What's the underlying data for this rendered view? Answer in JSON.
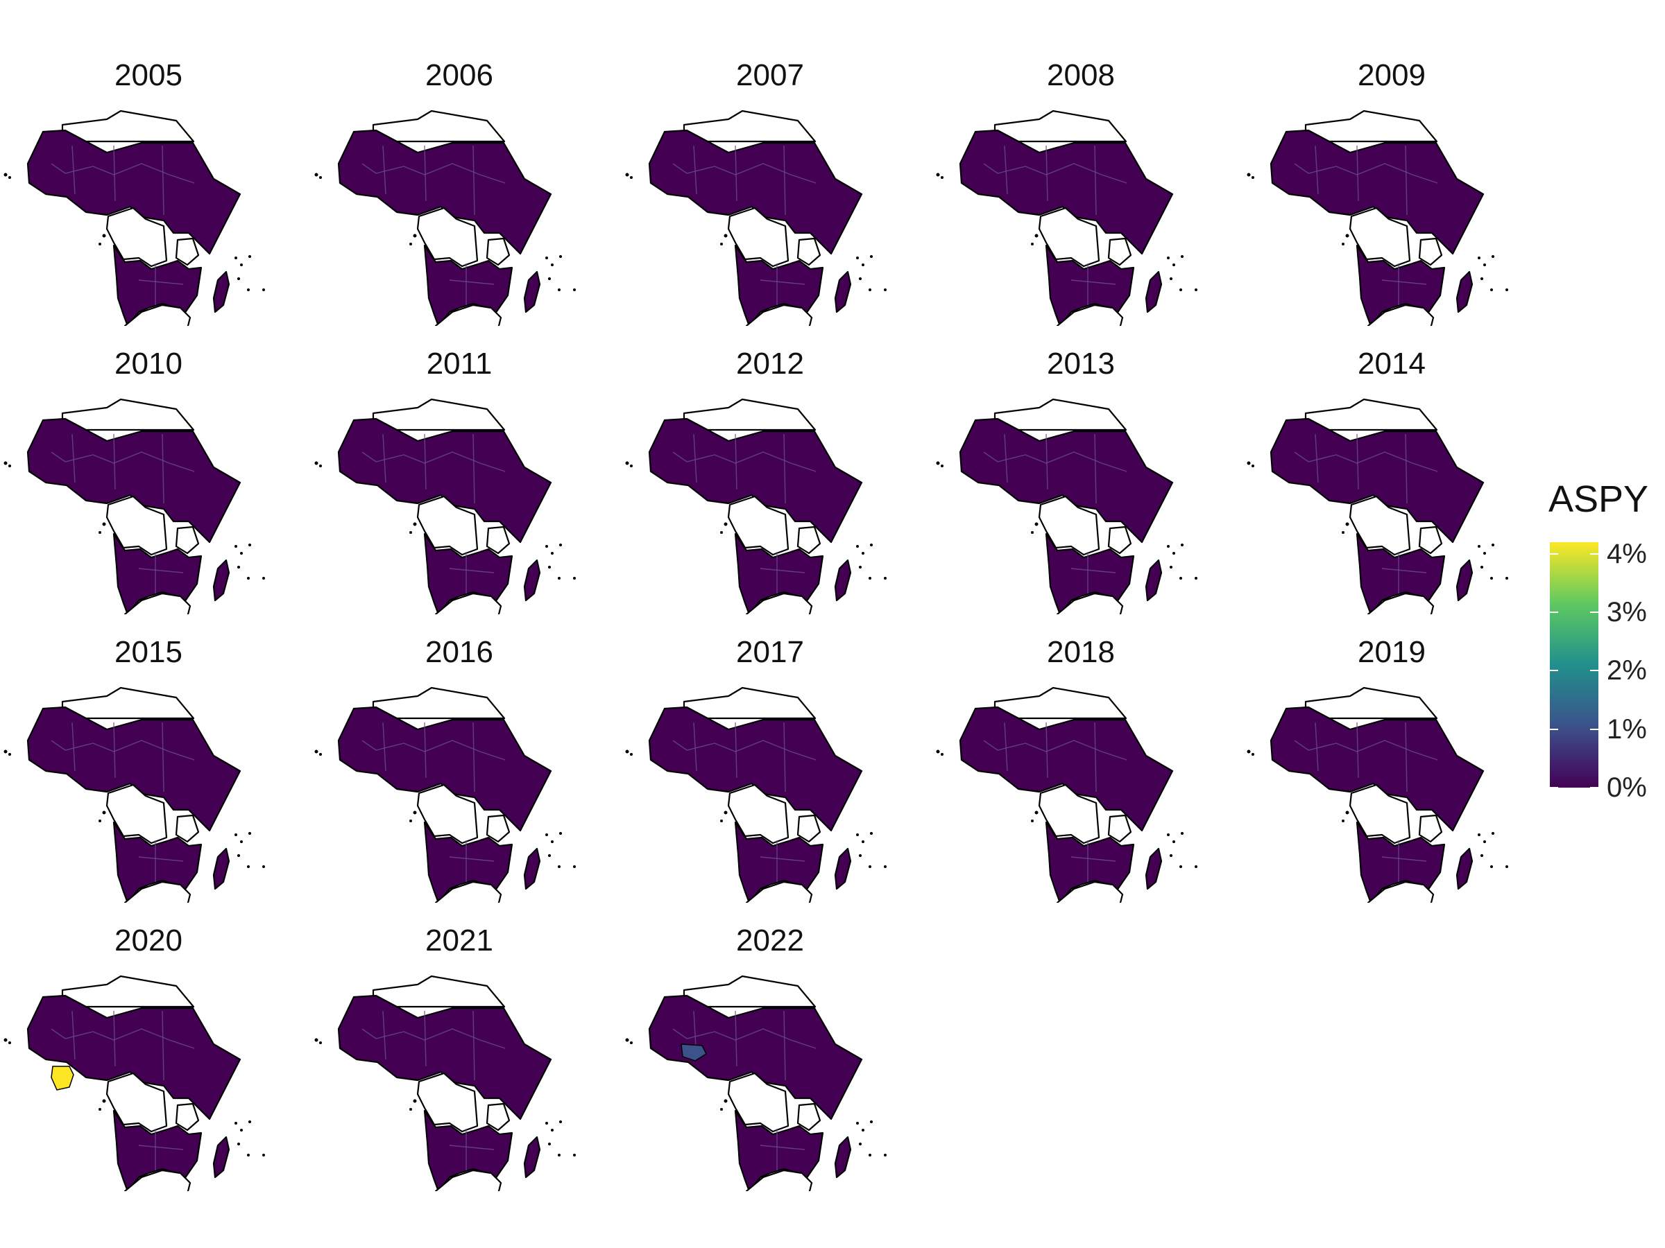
{
  "panels": [
    {
      "year": "2005"
    },
    {
      "year": "2006"
    },
    {
      "year": "2007"
    },
    {
      "year": "2008"
    },
    {
      "year": "2009"
    },
    {
      "year": "2010"
    },
    {
      "year": "2011"
    },
    {
      "year": "2012"
    },
    {
      "year": "2013"
    },
    {
      "year": "2014"
    },
    {
      "year": "2015"
    },
    {
      "year": "2016"
    },
    {
      "year": "2017"
    },
    {
      "year": "2018"
    },
    {
      "year": "2019"
    },
    {
      "year": "2020",
      "highlight": {
        "region": "west-africa-coast",
        "value_pct": 4.2,
        "color": "#fde725"
      }
    },
    {
      "year": "2021"
    },
    {
      "year": "2022",
      "highlight": {
        "region": "west-africa-interior",
        "value_pct": 1.1,
        "color": "#3b528b"
      }
    }
  ],
  "legend": {
    "title": "ASPY",
    "ticks": [
      "4%",
      "3%",
      "2%",
      "1%",
      "0%"
    ],
    "tick_values": [
      4,
      3,
      2,
      1,
      0
    ],
    "max_value": 4.2,
    "colors": {
      "low": "#440154",
      "high": "#fde725"
    }
  },
  "map_colors": {
    "data": "#440154",
    "no_data": "#ffffff",
    "border": "#000000",
    "subregion": "#6a4c8c"
  }
}
